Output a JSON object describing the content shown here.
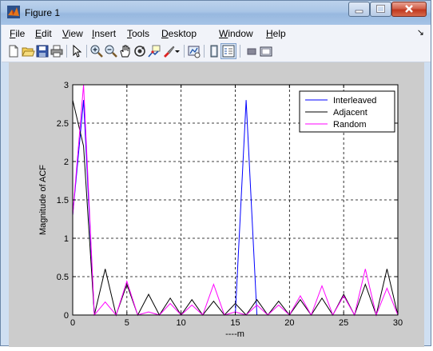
{
  "window": {
    "title": "Figure 1"
  },
  "menu": [
    {
      "label": "File",
      "key": "F",
      "rest": "ile"
    },
    {
      "label": "Edit",
      "key": "E",
      "rest": "dit"
    },
    {
      "label": "View",
      "key": "V",
      "rest": "iew"
    },
    {
      "label": "Insert",
      "key": "I",
      "rest": "nsert"
    },
    {
      "label": "Tools",
      "key": "T",
      "rest": "ools"
    },
    {
      "label": "Desktop",
      "key": "D",
      "rest": "esktop"
    },
    {
      "label": "Window",
      "key": "W",
      "rest": "indow"
    },
    {
      "label": "Help",
      "key": "H",
      "rest": "elp"
    }
  ],
  "toolbar_icons": [
    "new-figure-icon",
    "open-file-icon",
    "save-icon",
    "print-icon",
    "pointer-icon",
    "zoom-in-icon",
    "zoom-out-icon",
    "pan-icon",
    "rotate-3d-icon",
    "data-cursor-icon",
    "brush-icon",
    "link-plot-icon",
    "colorbar-icon",
    "legend-icon",
    "hide-plot-tools-icon",
    "show-plot-tools-icon"
  ],
  "colors": {
    "interleaved": "#0000ff",
    "adjacent": "#000000",
    "random": "#ff00ff",
    "figure_bg": "#cccccc"
  },
  "chart_data": {
    "type": "line",
    "title": "",
    "xlabel": "----m",
    "ylabel": "Magnitude of ACF",
    "xlim": [
      0,
      30
    ],
    "ylim": [
      0,
      3
    ],
    "xticks": [
      0,
      5,
      10,
      15,
      20,
      25,
      30
    ],
    "yticks": [
      0,
      0.5,
      1,
      1.5,
      2,
      2.5,
      3
    ],
    "grid": true,
    "legend_position": "top-right",
    "x": [
      0,
      1,
      2,
      3,
      4,
      5,
      6,
      7,
      8,
      9,
      10,
      11,
      12,
      13,
      14,
      15,
      16,
      17,
      18,
      19,
      20,
      21,
      22,
      23,
      24,
      25,
      26,
      27,
      28,
      29,
      30
    ],
    "series": [
      {
        "name": "Interleaved",
        "color": "#0000ff",
        "values": [
          1.3,
          2.8,
          0,
          0,
          0,
          0,
          0,
          0,
          0,
          0,
          0,
          0,
          0,
          0,
          0,
          0,
          2.8,
          0,
          0,
          0,
          0,
          0,
          0,
          0,
          0,
          0,
          0,
          0,
          0,
          0,
          0
        ]
      },
      {
        "name": "Adjacent",
        "color": "#000000",
        "values": [
          2.8,
          2.2,
          0,
          0.6,
          0,
          0.4,
          0,
          0.27,
          0,
          0.22,
          0,
          0.2,
          0,
          0.18,
          0,
          0.15,
          0,
          0.2,
          0,
          0.18,
          0,
          0.2,
          0,
          0.22,
          0,
          0.27,
          0,
          0.4,
          0,
          0.6,
          0
        ]
      },
      {
        "name": "Random",
        "color": "#ff00ff",
        "values": [
          1.3,
          3.0,
          0,
          0.17,
          0,
          0.44,
          0,
          0.04,
          0,
          0.15,
          0,
          0.13,
          0,
          0.4,
          0,
          0.04,
          0,
          0.13,
          0,
          0.13,
          0,
          0.25,
          0,
          0.38,
          0,
          0.25,
          0,
          0.6,
          0,
          0.35,
          0
        ]
      }
    ]
  }
}
